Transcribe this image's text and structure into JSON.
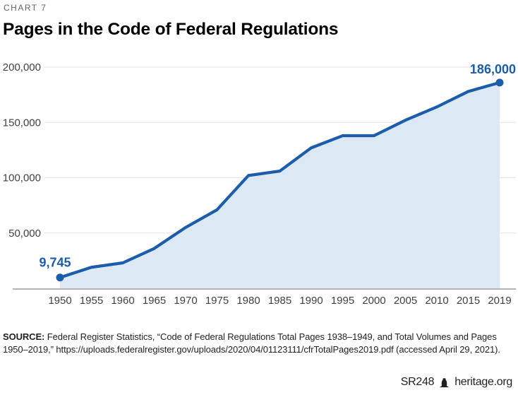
{
  "header": {
    "kicker": "CHART 7",
    "title": "Pages in the Code of Federal Regulations"
  },
  "chart_data": {
    "type": "area",
    "title": "Pages in the Code of Federal Regulations",
    "x": [
      "1950",
      "1955",
      "1960",
      "1965",
      "1970",
      "1975",
      "1980",
      "1985",
      "1990",
      "1995",
      "2000",
      "2005",
      "2010",
      "2015",
      "2019"
    ],
    "values": [
      9745,
      19000,
      23000,
      36000,
      55000,
      71000,
      102000,
      106000,
      127000,
      138000,
      138000,
      152000,
      164000,
      178000,
      186000
    ],
    "first_point_label": "9,745",
    "last_point_label": "186,000",
    "xlabel": "",
    "ylabel": "",
    "ylim": [
      0,
      200000
    ],
    "yticks": [
      50000,
      100000,
      150000,
      200000
    ],
    "ytick_labels": [
      "50,000",
      "100,000",
      "150,000",
      "200,000"
    ],
    "grid": "horizontal",
    "legend": "none",
    "line_color": "#1b5dab",
    "fill_color": "#dce8f4",
    "label_color": "#1b5dab",
    "axis_text_color": "#414042"
  },
  "source": {
    "label": "SOURCE:",
    "text": " Federal Register Statistics, “Code of Federal Regulations Total Pages 1938–1949, and Total Volumes and Pages 1950–2019,” https://uploads.federalregister.gov/uploads/2020/04/01123111/cfrTotalPages2019.pdf (accessed April 29, 2021)."
  },
  "footer": {
    "report_id": "SR248",
    "site": "heritage.org"
  }
}
